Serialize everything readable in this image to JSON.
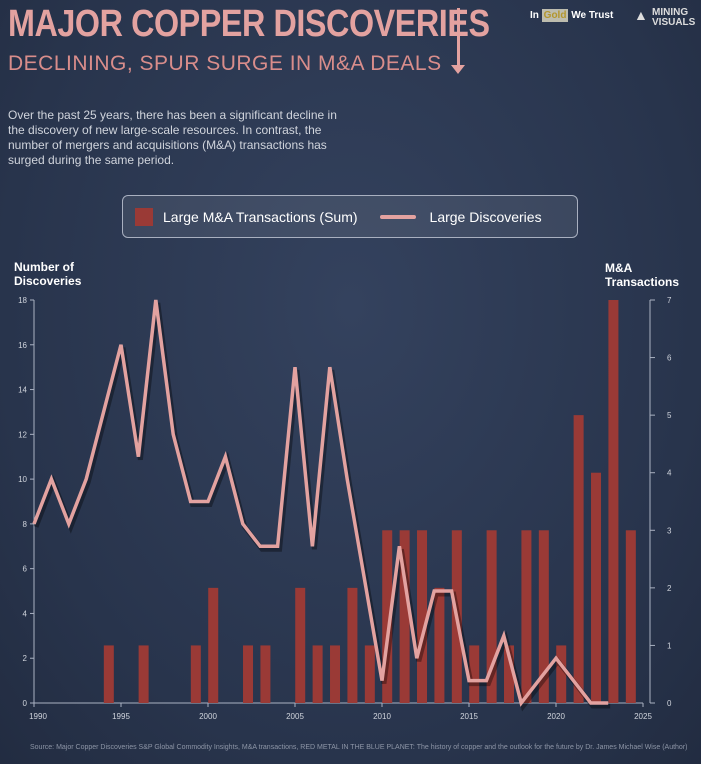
{
  "header": {
    "title": "MAJOR COPPER DISCOVERIES",
    "subtitle": "DECLINING, SPUR SURGE IN M&A DEALS",
    "logo1_a": "In",
    "logo1_b": "Gold",
    "logo1_c": "We Trust",
    "logo2_a": "MINING",
    "logo2_b": "VISUALS"
  },
  "intro": "Over the past 25 years, there has been a significant decline in the discovery of new large-scale resources. In contrast, the number of mergers and acquisitions (M&A) transactions has surged during the same period.",
  "source": "Source: Major Copper Discoveries S&P Global Commodity Insights, M&A transactions, RED METAL IN THE BLUE PLANET:  The history of copper and the outlook for the future by Dr. James Michael Wise (Author)",
  "colors": {
    "bar": "#9a3a36",
    "line": "#e3a2a0"
  },
  "chart_data": {
    "type": "bar+line",
    "legend": [
      "Large M&A Transactions (Sum)",
      "Large Discoveries"
    ],
    "legend_position": "top",
    "ylabel_left": "Number of Discoveries",
    "ylabel_right": "M&A Transactions",
    "ylim_left": [
      0,
      18
    ],
    "ylim_right": [
      0,
      7
    ],
    "xlim": [
      1990,
      2025
    ],
    "xticks": [
      1990,
      1995,
      2000,
      2005,
      2010,
      2015,
      2020,
      2025
    ],
    "yticks_left": [
      0,
      2,
      4,
      6,
      8,
      10,
      12,
      14,
      16,
      18
    ],
    "yticks_right": [
      0,
      1,
      2,
      3,
      4,
      5,
      6,
      7
    ],
    "discoveries": {
      "x": [
        1990,
        1991,
        1992,
        1993,
        1994,
        1995,
        1996,
        1997,
        1998,
        1999,
        2000,
        2001,
        2002,
        2003,
        2004,
        2005,
        2006,
        2007,
        2008,
        2009,
        2010,
        2011,
        2012,
        2013,
        2014,
        2015,
        2016,
        2017,
        2018,
        2019,
        2020,
        2021,
        2022,
        2023
      ],
      "y": [
        8,
        10,
        8,
        10,
        13,
        16,
        11,
        18,
        12,
        9,
        9,
        11,
        8,
        7,
        7,
        15,
        7,
        15,
        10,
        5.5,
        1,
        7,
        2,
        5,
        5,
        1,
        1,
        3,
        0,
        1,
        2,
        1,
        0,
        0
      ]
    },
    "ma": {
      "x": [
        1994,
        1996,
        1999,
        2000,
        2002,
        2003,
        2005,
        2006,
        2007,
        2008,
        2009,
        2010,
        2011,
        2012,
        2013,
        2014,
        2015,
        2016,
        2017,
        2018,
        2019,
        2020,
        2021,
        2022,
        2023,
        2024
      ],
      "y": [
        1,
        1,
        1,
        2,
        1,
        1,
        2,
        1,
        1,
        2,
        1,
        3,
        3,
        3,
        2,
        3,
        1,
        3,
        1,
        3,
        3,
        1,
        5,
        4,
        7,
        3
      ]
    }
  }
}
